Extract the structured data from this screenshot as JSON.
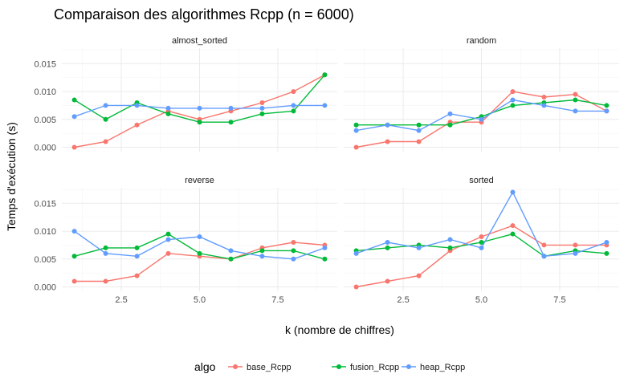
{
  "chart_data": {
    "type": "line",
    "title": "Comparaison des algorithmes Rcpp (n = 6000)",
    "xlabel": "k (nombre de chiffres)",
    "ylabel": "Temps d'exécution (s)",
    "x": [
      1,
      2,
      3,
      4,
      5,
      6,
      7,
      8,
      9
    ],
    "xlim": [
      0.6,
      9.4
    ],
    "ylim": [
      -0.0008,
      0.0178
    ],
    "x_ticks": [
      2.5,
      5.0,
      7.5
    ],
    "x_tick_labels": [
      "2.5",
      "5.0",
      "7.5"
    ],
    "y_ticks": [
      0,
      0.005,
      0.01,
      0.015
    ],
    "y_tick_labels": [
      "0.000",
      "0.005",
      "0.010",
      "0.015"
    ],
    "grid": true,
    "legend": {
      "title": "algo",
      "position": "bottom",
      "entries": [
        "base_Rcpp",
        "fusion_Rcpp",
        "heap_Rcpp"
      ],
      "colors": [
        "#F8766D",
        "#00BA38",
        "#619CFF"
      ]
    },
    "facets": [
      {
        "label": "almost_sorted",
        "series": [
          {
            "name": "base_Rcpp",
            "values": [
              0.0,
              0.001,
              0.004,
              0.0065,
              0.005,
              0.0065,
              0.008,
              0.01,
              0.013
            ]
          },
          {
            "name": "fusion_Rcpp",
            "values": [
              0.0085,
              0.005,
              0.008,
              0.006,
              0.0045,
              0.0045,
              0.006,
              0.0065,
              0.013
            ]
          },
          {
            "name": "heap_Rcpp",
            "values": [
              0.0055,
              0.0075,
              0.0075,
              0.007,
              0.007,
              0.007,
              0.007,
              0.0075,
              0.0075
            ]
          }
        ]
      },
      {
        "label": "random",
        "series": [
          {
            "name": "base_Rcpp",
            "values": [
              0.0,
              0.001,
              0.001,
              0.0045,
              0.0045,
              0.01,
              0.009,
              0.0095,
              0.0065
            ]
          },
          {
            "name": "fusion_Rcpp",
            "values": [
              0.004,
              0.004,
              0.004,
              0.004,
              0.0055,
              0.0075,
              0.008,
              0.0085,
              0.0075
            ]
          },
          {
            "name": "heap_Rcpp",
            "values": [
              0.003,
              0.004,
              0.003,
              0.006,
              0.005,
              0.0085,
              0.0075,
              0.0065,
              0.0065
            ]
          }
        ]
      },
      {
        "label": "reverse",
        "series": [
          {
            "name": "base_Rcpp",
            "values": [
              0.001,
              0.001,
              0.002,
              0.006,
              0.0055,
              0.005,
              0.007,
              0.008,
              0.0075
            ]
          },
          {
            "name": "fusion_Rcpp",
            "values": [
              0.0055,
              0.007,
              0.007,
              0.0095,
              0.006,
              0.005,
              0.0065,
              0.0065,
              0.005
            ]
          },
          {
            "name": "heap_Rcpp",
            "values": [
              0.01,
              0.006,
              0.0055,
              0.0085,
              0.009,
              0.0065,
              0.0055,
              0.005,
              0.007
            ]
          }
        ]
      },
      {
        "label": "sorted",
        "series": [
          {
            "name": "base_Rcpp",
            "values": [
              0.0,
              0.001,
              0.002,
              0.0065,
              0.009,
              0.011,
              0.0075,
              0.0075,
              0.0075
            ]
          },
          {
            "name": "fusion_Rcpp",
            "values": [
              0.0065,
              0.007,
              0.0075,
              0.007,
              0.008,
              0.0095,
              0.0055,
              0.0065,
              0.006
            ]
          },
          {
            "name": "heap_Rcpp",
            "values": [
              0.006,
              0.008,
              0.007,
              0.0085,
              0.007,
              0.017,
              0.0055,
              0.006,
              0.008
            ]
          }
        ]
      }
    ]
  }
}
